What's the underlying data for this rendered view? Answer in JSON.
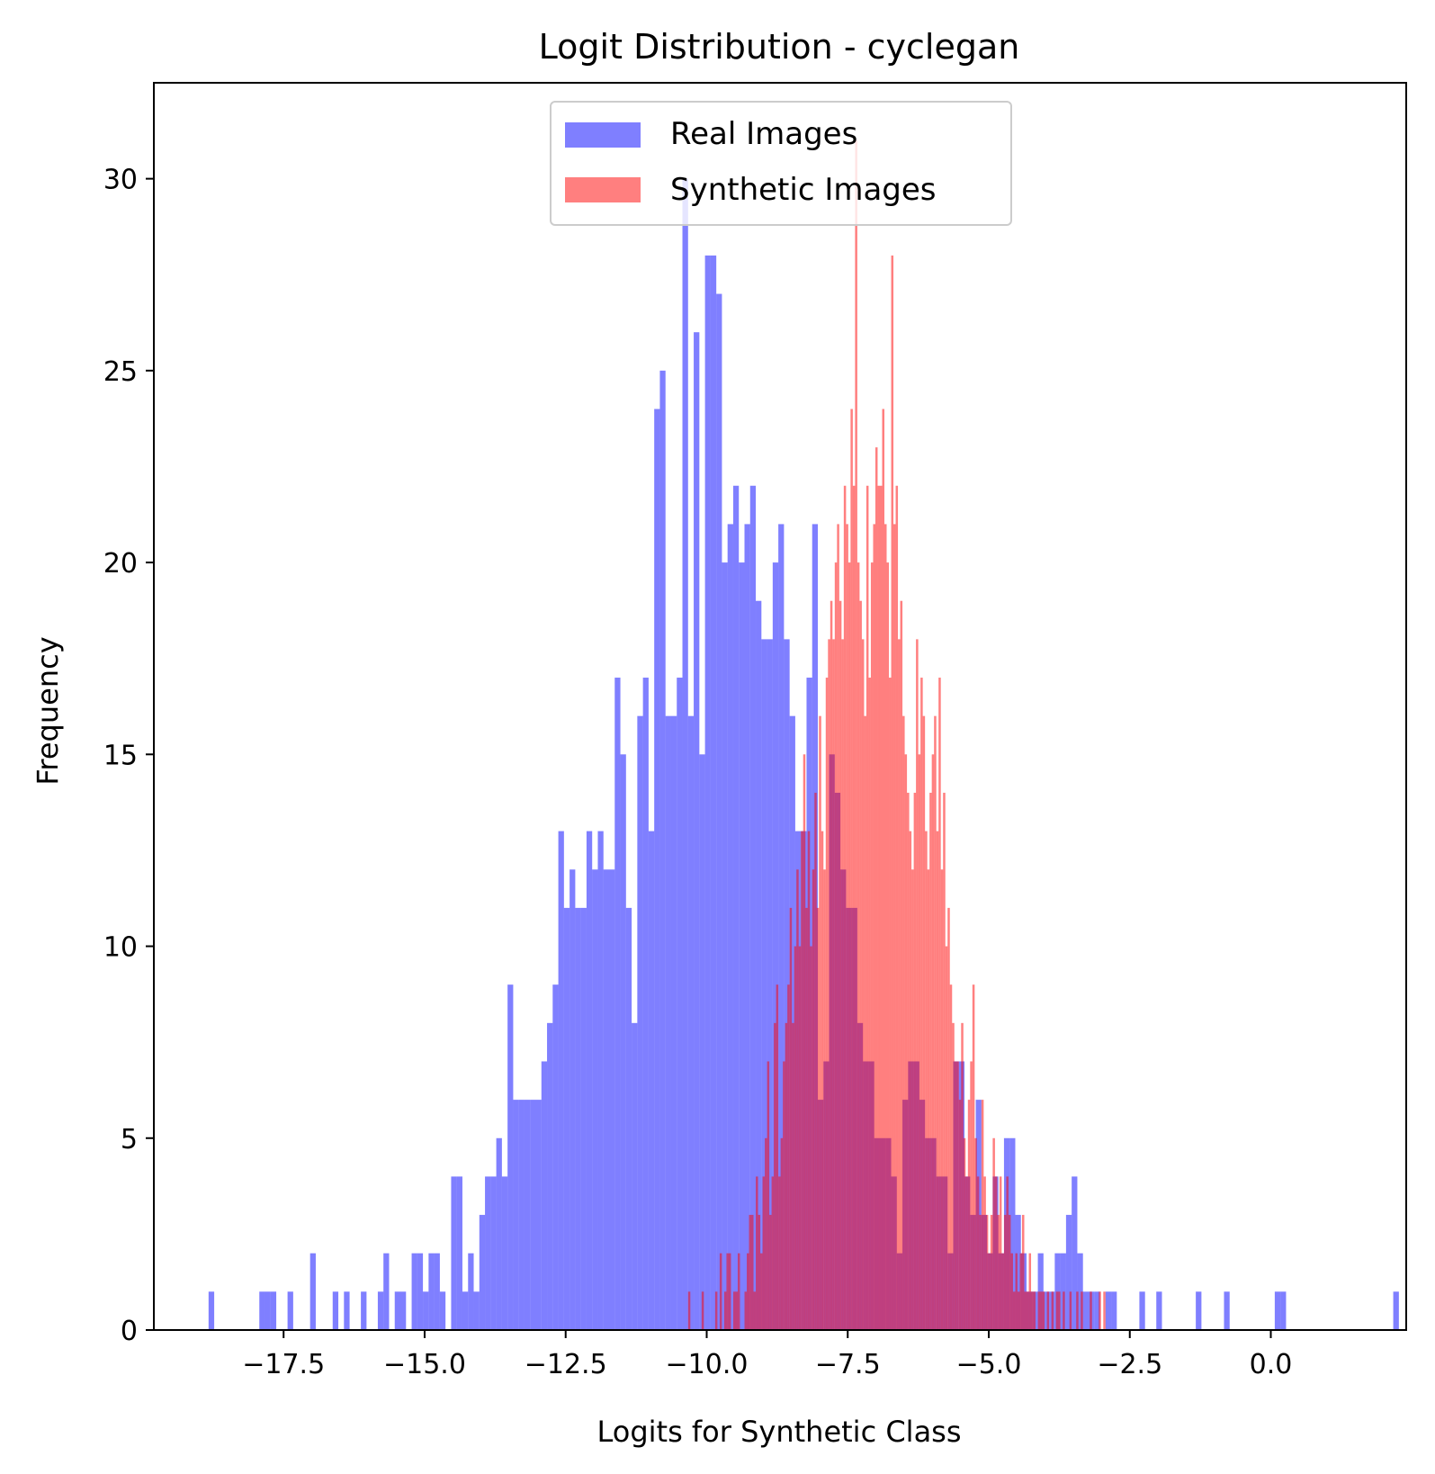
{
  "chart_data": {
    "type": "bar",
    "subtype": "histogram-overlay",
    "title": "Logit Distribution - cyclegan",
    "xlabel": "Logits for Synthetic Class",
    "ylabel": "Frequency",
    "xlim": [
      -19.8,
      2.4
    ],
    "ylim": [
      0,
      32.5
    ],
    "xticks": [
      -17.5,
      -15.0,
      -12.5,
      -10.0,
      -7.5,
      -5.0,
      -2.5,
      0.0
    ],
    "xtick_labels": [
      "−17.5",
      "−15.0",
      "−12.5",
      "−10.0",
      "−7.5",
      "−5.0",
      "−2.5",
      "0.0"
    ],
    "yticks": [
      0,
      5,
      10,
      15,
      20,
      25,
      30
    ],
    "ytick_labels": [
      "0",
      "5",
      "10",
      "15",
      "20",
      "25",
      "30"
    ],
    "grid": false,
    "legend_position": "upper-center",
    "series": [
      {
        "name": "Real Images",
        "color": "#0000ff",
        "alpha": 0.5,
        "bin_start": -18.83,
        "bin_width": 0.1,
        "counts": [
          1,
          0,
          0,
          0,
          0,
          0,
          0,
          0,
          0,
          1,
          1,
          1,
          0,
          0,
          1,
          0,
          0,
          0,
          2,
          0,
          0,
          0,
          1,
          0,
          1,
          0,
          0,
          1,
          0,
          0,
          1,
          2,
          0,
          1,
          1,
          0,
          2,
          2,
          1,
          2,
          2,
          1,
          0,
          4,
          4,
          1,
          2,
          1,
          3,
          4,
          4,
          5,
          4,
          9,
          6,
          6,
          6,
          6,
          6,
          7,
          8,
          9,
          13,
          11,
          12,
          11,
          11,
          13,
          12,
          13,
          12,
          12,
          17,
          15,
          11,
          8,
          16,
          17,
          13,
          24,
          25,
          16,
          16,
          17,
          30,
          16,
          26,
          15,
          28,
          28,
          27,
          20,
          21,
          22,
          20,
          21,
          22,
          19,
          18,
          18,
          20,
          21,
          18,
          16,
          13,
          13,
          17,
          21,
          6,
          7,
          15,
          14,
          12,
          11,
          11,
          8,
          7,
          7,
          5,
          5,
          5,
          4,
          2,
          6,
          7,
          7,
          6,
          5,
          5,
          4,
          4,
          2,
          7,
          7,
          4,
          3,
          6,
          3,
          2,
          4,
          2,
          5,
          5,
          3,
          2,
          1,
          1,
          2,
          1,
          1,
          2,
          2,
          3,
          4,
          2,
          1,
          1,
          1,
          0,
          1,
          1,
          0,
          0,
          0,
          0,
          1,
          0,
          0,
          1,
          0,
          0,
          0,
          0,
          0,
          0,
          1,
          0,
          0,
          0,
          0,
          1,
          0,
          0,
          0,
          0,
          0,
          0,
          0,
          0,
          1,
          1,
          0,
          0,
          0,
          0,
          0,
          0,
          0,
          0,
          0,
          0,
          0,
          0,
          0,
          0,
          0,
          0,
          0,
          0,
          0,
          1
        ]
      },
      {
        "name": "Synthetic Images",
        "color": "#ff0000",
        "alpha": 0.5,
        "bin_start": -10.33,
        "bin_width": 0.04,
        "counts": [
          1,
          0,
          0,
          0,
          0,
          0,
          1,
          0,
          0,
          0,
          0,
          0,
          1,
          0,
          2,
          0,
          1,
          2,
          2,
          0,
          1,
          1,
          2,
          0,
          0,
          1,
          2,
          3,
          3,
          1,
          4,
          3,
          2,
          4,
          5,
          7,
          3,
          4,
          8,
          9,
          4,
          5,
          7,
          8,
          9,
          11,
          8,
          10,
          12,
          10,
          13,
          15,
          11,
          13,
          10,
          12,
          14,
          11,
          16,
          13,
          12,
          17,
          18,
          19,
          18,
          20,
          21,
          19,
          18,
          22,
          21,
          20,
          24,
          22,
          31,
          20,
          19,
          18,
          16,
          22,
          17,
          20,
          21,
          23,
          22,
          22,
          24,
          21,
          20,
          17,
          28,
          21,
          22,
          18,
          19,
          16,
          15,
          14,
          13,
          12,
          14,
          18,
          15,
          17,
          16,
          13,
          12,
          14,
          15,
          16,
          13,
          17,
          12,
          14,
          10,
          11,
          9,
          8,
          7,
          7,
          6,
          8,
          5,
          4,
          6,
          7,
          9,
          5,
          4,
          3,
          6,
          4,
          3,
          2,
          3,
          5,
          4,
          3,
          4,
          2,
          3,
          4,
          3,
          2,
          1,
          2,
          1,
          2,
          3,
          1,
          1,
          2,
          1,
          1,
          0,
          1,
          1,
          1,
          0,
          1,
          0,
          1,
          0,
          1,
          1,
          0,
          1,
          0,
          0,
          1,
          0,
          0,
          1,
          0,
          1,
          0,
          0,
          0,
          1,
          0,
          0,
          0,
          1,
          0,
          1
        ]
      }
    ]
  }
}
